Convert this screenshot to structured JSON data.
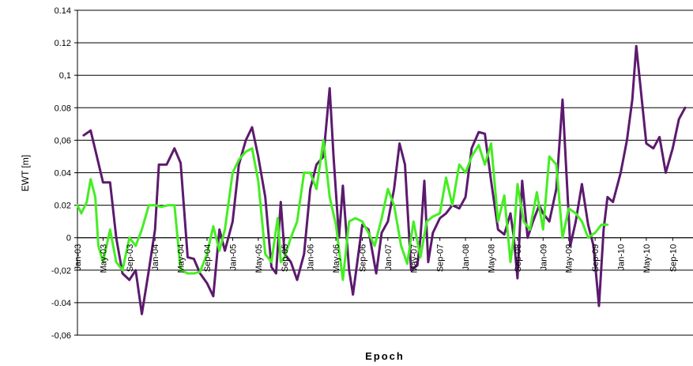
{
  "chart_data": {
    "type": "line",
    "title": "",
    "xlabel": "Epoch",
    "ylabel": "EWT [m]",
    "ylim": [
      -0.06,
      0.14
    ],
    "y_ticks": [
      {
        "value": 0.14,
        "label": "0.14"
      },
      {
        "value": 0.12,
        "label": "0.12"
      },
      {
        "value": 0.1,
        "label": "0,1"
      },
      {
        "value": 0.08,
        "label": "0.08"
      },
      {
        "value": 0.06,
        "label": "0,06"
      },
      {
        "value": 0.04,
        "label": "0.04"
      },
      {
        "value": 0.02,
        "label": "0.02"
      },
      {
        "value": 0,
        "label": "0"
      },
      {
        "value": -0.02,
        "label": "-0,02"
      },
      {
        "value": -0.04,
        "label": "-0.04"
      },
      {
        "value": -0.06,
        "label": "-0,06"
      }
    ],
    "grid": "horizontal",
    "legend": "none",
    "x_range": [
      2003.0,
      2010.85
    ],
    "x_ticks": [
      {
        "value": 2003.0,
        "label": "Jan-03"
      },
      {
        "value": 2003.33,
        "label": "May-03"
      },
      {
        "value": 2003.67,
        "label": "Sep-03"
      },
      {
        "value": 2004.0,
        "label": "Jan-04"
      },
      {
        "value": 2004.33,
        "label": "May-04"
      },
      {
        "value": 2004.67,
        "label": "Sep-04"
      },
      {
        "value": 2005.0,
        "label": "Jan-05"
      },
      {
        "value": 2005.33,
        "label": "May-05"
      },
      {
        "value": 2005.67,
        "label": "Sep-05"
      },
      {
        "value": 2006.0,
        "label": "Jan-06"
      },
      {
        "value": 2006.33,
        "label": "May-06"
      },
      {
        "value": 2006.67,
        "label": "Sep-06"
      },
      {
        "value": 2007.0,
        "label": "Jan-07"
      },
      {
        "value": 2007.33,
        "label": "May-07"
      },
      {
        "value": 2007.67,
        "label": "Sep-07"
      },
      {
        "value": 2008.0,
        "label": "Jan-08"
      },
      {
        "value": 2008.33,
        "label": "May-08"
      },
      {
        "value": 2008.67,
        "label": "Sep-08"
      },
      {
        "value": 2009.0,
        "label": "Jan-09"
      },
      {
        "value": 2009.33,
        "label": "May-09"
      },
      {
        "value": 2009.67,
        "label": "Sep-09"
      },
      {
        "value": 2010.0,
        "label": "Jan-10"
      },
      {
        "value": 2010.33,
        "label": "May-10"
      },
      {
        "value": 2010.67,
        "label": "Sep-10"
      }
    ],
    "series": [
      {
        "color": "#5c1a6e",
        "points": [
          [
            2003.08,
            0.063
          ],
          [
            2003.17,
            0.066
          ],
          [
            2003.25,
            0.05
          ],
          [
            2003.33,
            0.034
          ],
          [
            2003.42,
            0.034
          ],
          [
            2003.5,
            0.0
          ],
          [
            2003.58,
            -0.022
          ],
          [
            2003.67,
            -0.026
          ],
          [
            2003.75,
            -0.02
          ],
          [
            2003.83,
            -0.047
          ],
          [
            2003.92,
            -0.02
          ],
          [
            2004.0,
            0.005
          ],
          [
            2004.05,
            0.045
          ],
          [
            2004.15,
            0.045
          ],
          [
            2004.25,
            0.055
          ],
          [
            2004.33,
            0.046
          ],
          [
            2004.42,
            -0.012
          ],
          [
            2004.5,
            -0.013
          ],
          [
            2004.58,
            -0.022
          ],
          [
            2004.67,
            -0.028
          ],
          [
            2004.75,
            -0.036
          ],
          [
            2004.83,
            0.005
          ],
          [
            2004.9,
            -0.008
          ],
          [
            2005.0,
            0.01
          ],
          [
            2005.08,
            0.045
          ],
          [
            2005.17,
            0.06
          ],
          [
            2005.25,
            0.068
          ],
          [
            2005.33,
            0.05
          ],
          [
            2005.42,
            0.025
          ],
          [
            2005.5,
            -0.018
          ],
          [
            2005.56,
            -0.022
          ],
          [
            2005.62,
            0.022
          ],
          [
            2005.67,
            -0.01
          ],
          [
            2005.75,
            -0.015
          ],
          [
            2005.83,
            -0.026
          ],
          [
            2005.92,
            -0.01
          ],
          [
            2006.0,
            0.03
          ],
          [
            2006.08,
            0.045
          ],
          [
            2006.17,
            0.05
          ],
          [
            2006.25,
            0.092
          ],
          [
            2006.3,
            0.05
          ],
          [
            2006.37,
            0.0
          ],
          [
            2006.42,
            0.032
          ],
          [
            2006.5,
            -0.02
          ],
          [
            2006.55,
            -0.035
          ],
          [
            2006.62,
            -0.01
          ],
          [
            2006.67,
            0.008
          ],
          [
            2006.75,
            0.005
          ],
          [
            2006.85,
            -0.022
          ],
          [
            2006.92,
            0.003
          ],
          [
            2007.0,
            0.01
          ],
          [
            2007.08,
            0.03
          ],
          [
            2007.15,
            0.058
          ],
          [
            2007.22,
            0.045
          ],
          [
            2007.3,
            -0.02
          ],
          [
            2007.38,
            -0.017
          ],
          [
            2007.42,
            0.0
          ],
          [
            2007.47,
            0.035
          ],
          [
            2007.52,
            -0.015
          ],
          [
            2007.58,
            0.003
          ],
          [
            2007.67,
            0.012
          ],
          [
            2007.75,
            0.015
          ],
          [
            2007.83,
            0.02
          ],
          [
            2007.92,
            0.018
          ],
          [
            2008.0,
            0.025
          ],
          [
            2008.08,
            0.055
          ],
          [
            2008.17,
            0.065
          ],
          [
            2008.25,
            0.064
          ],
          [
            2008.33,
            0.035
          ],
          [
            2008.42,
            0.005
          ],
          [
            2008.5,
            0.002
          ],
          [
            2008.58,
            0.015
          ],
          [
            2008.62,
            0.001
          ],
          [
            2008.67,
            -0.025
          ],
          [
            2008.73,
            0.035
          ],
          [
            2008.8,
            0.0
          ],
          [
            2008.87,
            0.01
          ],
          [
            2008.95,
            0.02
          ],
          [
            2009.0,
            0.015
          ],
          [
            2009.08,
            0.01
          ],
          [
            2009.17,
            0.03
          ],
          [
            2009.25,
            0.085
          ],
          [
            2009.3,
            0.04
          ],
          [
            2009.35,
            -0.005
          ],
          [
            2009.42,
            0.01
          ],
          [
            2009.5,
            0.033
          ],
          [
            2009.58,
            0.008
          ],
          [
            2009.65,
            -0.005
          ],
          [
            2009.72,
            -0.042
          ],
          [
            2009.78,
            0.005
          ],
          [
            2009.83,
            0.025
          ],
          [
            2009.9,
            0.022
          ],
          [
            2010.0,
            0.04
          ],
          [
            2010.08,
            0.06
          ],
          [
            2010.15,
            0.085
          ],
          [
            2010.2,
            0.118
          ],
          [
            2010.25,
            0.095
          ],
          [
            2010.33,
            0.058
          ],
          [
            2010.42,
            0.055
          ],
          [
            2010.5,
            0.062
          ],
          [
            2010.58,
            0.04
          ],
          [
            2010.67,
            0.055
          ],
          [
            2010.75,
            0.073
          ],
          [
            2010.83,
            0.08
          ]
        ]
      },
      {
        "color": "#44ee22",
        "points": [
          [
            2003.0,
            0.02
          ],
          [
            2003.05,
            0.015
          ],
          [
            2003.12,
            0.022
          ],
          [
            2003.17,
            0.036
          ],
          [
            2003.23,
            0.025
          ],
          [
            2003.27,
            -0.005
          ],
          [
            2003.33,
            -0.015
          ],
          [
            2003.42,
            0.005
          ],
          [
            2003.5,
            -0.015
          ],
          [
            2003.58,
            -0.02
          ],
          [
            2003.67,
            0.0
          ],
          [
            2003.75,
            -0.005
          ],
          [
            2003.83,
            0.005
          ],
          [
            2003.92,
            0.02
          ],
          [
            2004.0,
            0.02
          ],
          [
            2004.08,
            0.019
          ],
          [
            2004.17,
            0.02
          ],
          [
            2004.25,
            0.02
          ],
          [
            2004.33,
            -0.02
          ],
          [
            2004.42,
            -0.022
          ],
          [
            2004.5,
            -0.022
          ],
          [
            2004.58,
            -0.021
          ],
          [
            2004.67,
            -0.01
          ],
          [
            2004.75,
            0.007
          ],
          [
            2004.83,
            -0.008
          ],
          [
            2004.9,
            0.005
          ],
          [
            2005.0,
            0.04
          ],
          [
            2005.08,
            0.048
          ],
          [
            2005.17,
            0.053
          ],
          [
            2005.25,
            0.055
          ],
          [
            2005.33,
            0.035
          ],
          [
            2005.42,
            -0.01
          ],
          [
            2005.5,
            -0.015
          ],
          [
            2005.58,
            0.012
          ],
          [
            2005.62,
            -0.015
          ],
          [
            2005.67,
            -0.012
          ],
          [
            2005.75,
            0.0
          ],
          [
            2005.83,
            0.01
          ],
          [
            2005.92,
            0.04
          ],
          [
            2006.0,
            0.04
          ],
          [
            2006.08,
            0.03
          ],
          [
            2006.17,
            0.06
          ],
          [
            2006.25,
            0.025
          ],
          [
            2006.33,
            0.008
          ],
          [
            2006.42,
            -0.026
          ],
          [
            2006.5,
            0.01
          ],
          [
            2006.58,
            0.012
          ],
          [
            2006.67,
            0.01
          ],
          [
            2006.75,
            0.003
          ],
          [
            2006.83,
            -0.005
          ],
          [
            2006.92,
            0.012
          ],
          [
            2007.0,
            0.03
          ],
          [
            2007.08,
            0.02
          ],
          [
            2007.17,
            -0.005
          ],
          [
            2007.25,
            -0.016
          ],
          [
            2007.33,
            0.01
          ],
          [
            2007.42,
            -0.012
          ],
          [
            2007.5,
            0.01
          ],
          [
            2007.58,
            0.013
          ],
          [
            2007.67,
            0.015
          ],
          [
            2007.75,
            0.037
          ],
          [
            2007.83,
            0.02
          ],
          [
            2007.92,
            0.045
          ],
          [
            2008.0,
            0.04
          ],
          [
            2008.08,
            0.05
          ],
          [
            2008.17,
            0.057
          ],
          [
            2008.25,
            0.045
          ],
          [
            2008.33,
            0.058
          ],
          [
            2008.42,
            0.01
          ],
          [
            2008.5,
            0.026
          ],
          [
            2008.58,
            -0.015
          ],
          [
            2008.62,
            0.0
          ],
          [
            2008.67,
            0.033
          ],
          [
            2008.75,
            0.01
          ],
          [
            2008.83,
            0.005
          ],
          [
            2008.92,
            0.028
          ],
          [
            2009.0,
            0.005
          ],
          [
            2009.08,
            0.05
          ],
          [
            2009.17,
            0.045
          ],
          [
            2009.25,
            0.0
          ],
          [
            2009.33,
            0.018
          ],
          [
            2009.42,
            0.015
          ],
          [
            2009.5,
            0.01
          ],
          [
            2009.58,
            0.0
          ],
          [
            2009.67,
            0.003
          ],
          [
            2009.75,
            0.008
          ],
          [
            2009.83,
            0.008
          ]
        ]
      }
    ]
  }
}
